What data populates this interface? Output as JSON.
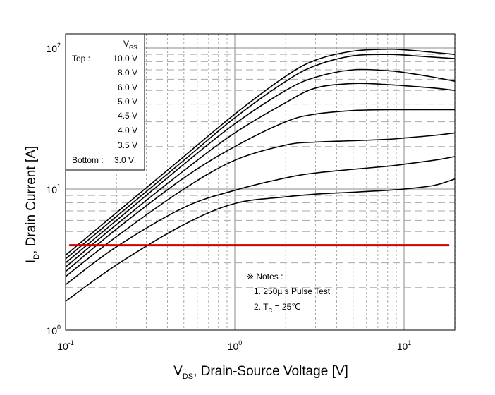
{
  "chart_data": {
    "type": "line",
    "title": "",
    "xlabel": {
      "main": "V",
      "sub": "DS",
      "rest": ", Drain-Source Voltage [V]"
    },
    "ylabel": {
      "main": "I",
      "sub": "D",
      "rest": ", Drain Current [A]"
    },
    "x_scale": "log",
    "y_scale": "log",
    "xlim": [
      0.1,
      20
    ],
    "ylim": [
      1,
      120
    ],
    "x_ticks": [
      {
        "value": 0.1,
        "base": "10",
        "exp": "-1"
      },
      {
        "value": 1,
        "base": "10",
        "exp": "0"
      },
      {
        "value": 10,
        "base": "10",
        "exp": "1"
      }
    ],
    "y_ticks": [
      {
        "value": 1,
        "base": "10",
        "exp": "0"
      },
      {
        "value": 10,
        "base": "10",
        "exp": "1"
      },
      {
        "value": 100,
        "base": "10",
        "exp": "2"
      }
    ],
    "grid": true,
    "legend": {
      "placement": "top-left",
      "header": {
        "main": "V",
        "sub": "GS"
      },
      "top_label": "Top :",
      "bottom_label": "Bottom :",
      "entries": [
        "10.0 V",
        "8.0 V",
        "6.0 V",
        "5.0 V",
        "4.5 V",
        "4.0 V",
        "3.5 V",
        "3.0 V"
      ]
    },
    "series": [
      {
        "x": [
          0.1,
          0.2,
          0.5,
          1,
          2,
          3,
          5,
          8,
          10,
          15,
          20
        ],
        "y": [
          3.4,
          6.8,
          17,
          34,
          63,
          82,
          95,
          98,
          97,
          93,
          90
        ]
      },
      {
        "x": [
          0.1,
          0.2,
          0.5,
          1,
          2,
          3,
          5,
          8,
          10,
          15,
          20
        ],
        "y": [
          3.2,
          6.4,
          16,
          32,
          58,
          75,
          88,
          90,
          89,
          86,
          84
        ]
      },
      {
        "x": [
          0.1,
          0.2,
          0.5,
          1,
          2,
          3,
          5,
          8,
          10,
          15,
          20
        ],
        "y": [
          3.0,
          6.0,
          15,
          29,
          50,
          62,
          70,
          69,
          67,
          62,
          58
        ]
      },
      {
        "x": [
          0.1,
          0.2,
          0.5,
          1,
          2,
          3,
          5,
          8,
          10,
          15,
          20
        ],
        "y": [
          2.8,
          5.6,
          13.5,
          25,
          41,
          52,
          56,
          55,
          54,
          52,
          50
        ]
      },
      {
        "x": [
          0.1,
          0.2,
          0.5,
          1,
          2,
          3,
          5,
          8,
          10,
          15,
          20
        ],
        "y": [
          2.6,
          5.2,
          12,
          20,
          30,
          34,
          36,
          36.5,
          36.5,
          36.5,
          36.5
        ]
      },
      {
        "x": [
          0.1,
          0.2,
          0.5,
          1,
          2,
          3,
          5,
          8,
          10,
          15,
          20
        ],
        "y": [
          2.4,
          4.6,
          10,
          16,
          20.5,
          21.5,
          22,
          22.5,
          23,
          24,
          25
        ]
      },
      {
        "x": [
          0.1,
          0.2,
          0.5,
          1,
          2,
          3,
          5,
          8,
          10,
          15,
          20
        ],
        "y": [
          2.1,
          3.9,
          7.4,
          9.8,
          12,
          13,
          13.8,
          14.5,
          15,
          16,
          17
        ]
      },
      {
        "x": [
          0.1,
          0.2,
          0.5,
          1,
          2,
          3,
          5,
          8,
          10,
          15,
          20
        ],
        "y": [
          1.6,
          2.9,
          5.6,
          7.9,
          8.8,
          9.2,
          9.5,
          9.8,
          10,
          10.6,
          11.8
        ]
      }
    ],
    "reference_line": {
      "y": 4,
      "x_range": [
        0.105,
        18.5
      ],
      "color": "#d00000"
    },
    "notes": {
      "heading": "※ Notes :",
      "line1": "1. 250µ s Pulse Test",
      "line2": {
        "pre": "2. T",
        "sub": "C",
        "post": " = 25℃"
      }
    }
  },
  "colors": {
    "curve": "#000000",
    "grid_major": "#888888",
    "grid_minor": "#aaaaaa",
    "reference": "#d00000"
  }
}
